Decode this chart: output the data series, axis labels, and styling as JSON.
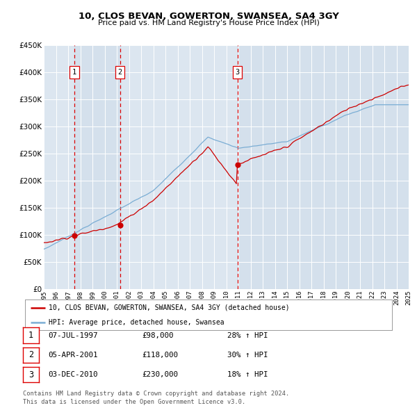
{
  "title": "10, CLOS BEVAN, GOWERTON, SWANSEA, SA4 3GY",
  "subtitle": "Price paid vs. HM Land Registry's House Price Index (HPI)",
  "plot_bg_color": "#dce6f0",
  "x_start_year": 1995,
  "x_end_year": 2025,
  "y_min": 0,
  "y_max": 450000,
  "y_ticks": [
    0,
    50000,
    100000,
    150000,
    200000,
    250000,
    300000,
    350000,
    400000,
    450000
  ],
  "y_tick_labels": [
    "£0",
    "£50K",
    "£100K",
    "£150K",
    "£200K",
    "£250K",
    "£300K",
    "£350K",
    "£400K",
    "£450K"
  ],
  "sale_dates_years": [
    1997.52,
    2001.26,
    2010.92
  ],
  "sale_prices": [
    98000,
    118000,
    230000
  ],
  "sale_labels": [
    "1",
    "2",
    "3"
  ],
  "legend_red": "10, CLOS BEVAN, GOWERTON, SWANSEA, SA4 3GY (detached house)",
  "legend_blue": "HPI: Average price, detached house, Swansea",
  "table_rows": [
    [
      "1",
      "07-JUL-1997",
      "£98,000",
      "28% ↑ HPI"
    ],
    [
      "2",
      "05-APR-2001",
      "£118,000",
      "30% ↑ HPI"
    ],
    [
      "3",
      "03-DEC-2010",
      "£230,000",
      "18% ↑ HPI"
    ]
  ],
  "footer": "Contains HM Land Registry data © Crown copyright and database right 2024.\nThis data is licensed under the Open Government Licence v3.0.",
  "red_color": "#cc0000",
  "blue_color": "#7aadd4",
  "dashed_red": "#dd0000",
  "shade_colors": [
    "#c8d8e8",
    "#b8cede",
    "#c8d8e8",
    "#b8cede"
  ]
}
